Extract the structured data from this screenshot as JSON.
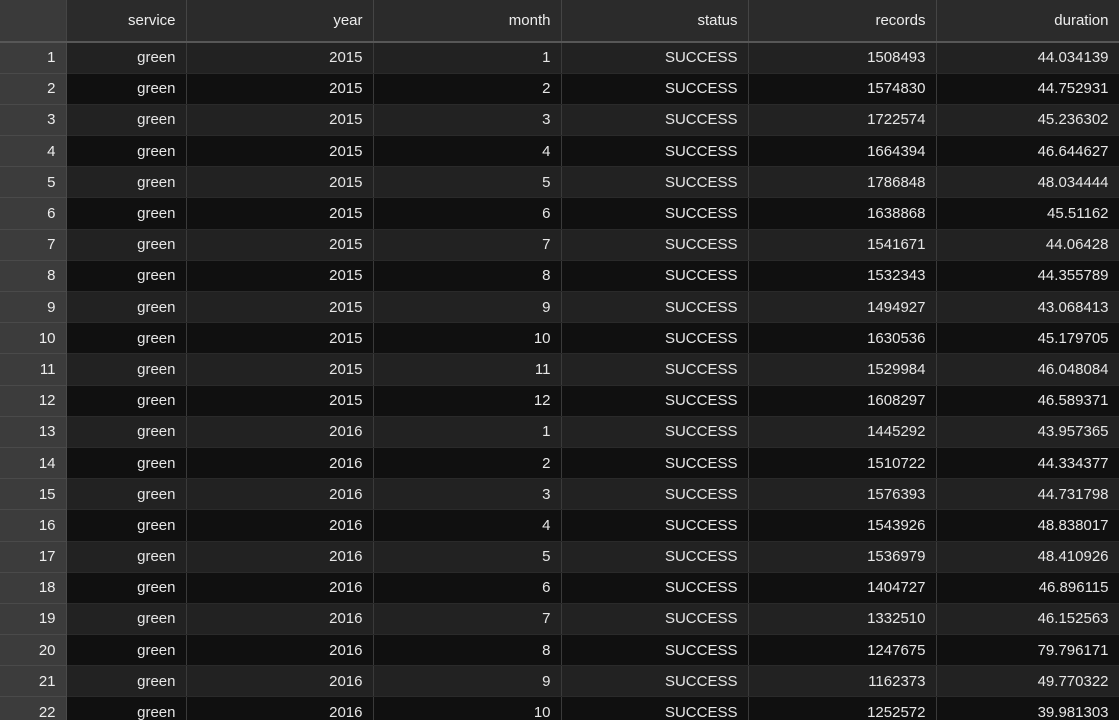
{
  "table": {
    "index_header": "",
    "columns": [
      "service",
      "year",
      "month",
      "status",
      "records",
      "duration"
    ],
    "rows": [
      [
        "1",
        "green",
        "2015",
        "1",
        "SUCCESS",
        "1508493",
        "44.034139"
      ],
      [
        "2",
        "green",
        "2015",
        "2",
        "SUCCESS",
        "1574830",
        "44.752931"
      ],
      [
        "3",
        "green",
        "2015",
        "3",
        "SUCCESS",
        "1722574",
        "45.236302"
      ],
      [
        "4",
        "green",
        "2015",
        "4",
        "SUCCESS",
        "1664394",
        "46.644627"
      ],
      [
        "5",
        "green",
        "2015",
        "5",
        "SUCCESS",
        "1786848",
        "48.034444"
      ],
      [
        "6",
        "green",
        "2015",
        "6",
        "SUCCESS",
        "1638868",
        "45.51162"
      ],
      [
        "7",
        "green",
        "2015",
        "7",
        "SUCCESS",
        "1541671",
        "44.06428"
      ],
      [
        "8",
        "green",
        "2015",
        "8",
        "SUCCESS",
        "1532343",
        "44.355789"
      ],
      [
        "9",
        "green",
        "2015",
        "9",
        "SUCCESS",
        "1494927",
        "43.068413"
      ],
      [
        "10",
        "green",
        "2015",
        "10",
        "SUCCESS",
        "1630536",
        "45.179705"
      ],
      [
        "11",
        "green",
        "2015",
        "11",
        "SUCCESS",
        "1529984",
        "46.048084"
      ],
      [
        "12",
        "green",
        "2015",
        "12",
        "SUCCESS",
        "1608297",
        "46.589371"
      ],
      [
        "13",
        "green",
        "2016",
        "1",
        "SUCCESS",
        "1445292",
        "43.957365"
      ],
      [
        "14",
        "green",
        "2016",
        "2",
        "SUCCESS",
        "1510722",
        "44.334377"
      ],
      [
        "15",
        "green",
        "2016",
        "3",
        "SUCCESS",
        "1576393",
        "44.731798"
      ],
      [
        "16",
        "green",
        "2016",
        "4",
        "SUCCESS",
        "1543926",
        "48.838017"
      ],
      [
        "17",
        "green",
        "2016",
        "5",
        "SUCCESS",
        "1536979",
        "48.410926"
      ],
      [
        "18",
        "green",
        "2016",
        "6",
        "SUCCESS",
        "1404727",
        "46.896115"
      ],
      [
        "19",
        "green",
        "2016",
        "7",
        "SUCCESS",
        "1332510",
        "46.152563"
      ],
      [
        "20",
        "green",
        "2016",
        "8",
        "SUCCESS",
        "1247675",
        "79.796171"
      ],
      [
        "21",
        "green",
        "2016",
        "9",
        "SUCCESS",
        "1162373",
        "49.770322"
      ],
      [
        "22",
        "green",
        "2016",
        "10",
        "SUCCESS",
        "1252572",
        "39.981303"
      ]
    ]
  }
}
